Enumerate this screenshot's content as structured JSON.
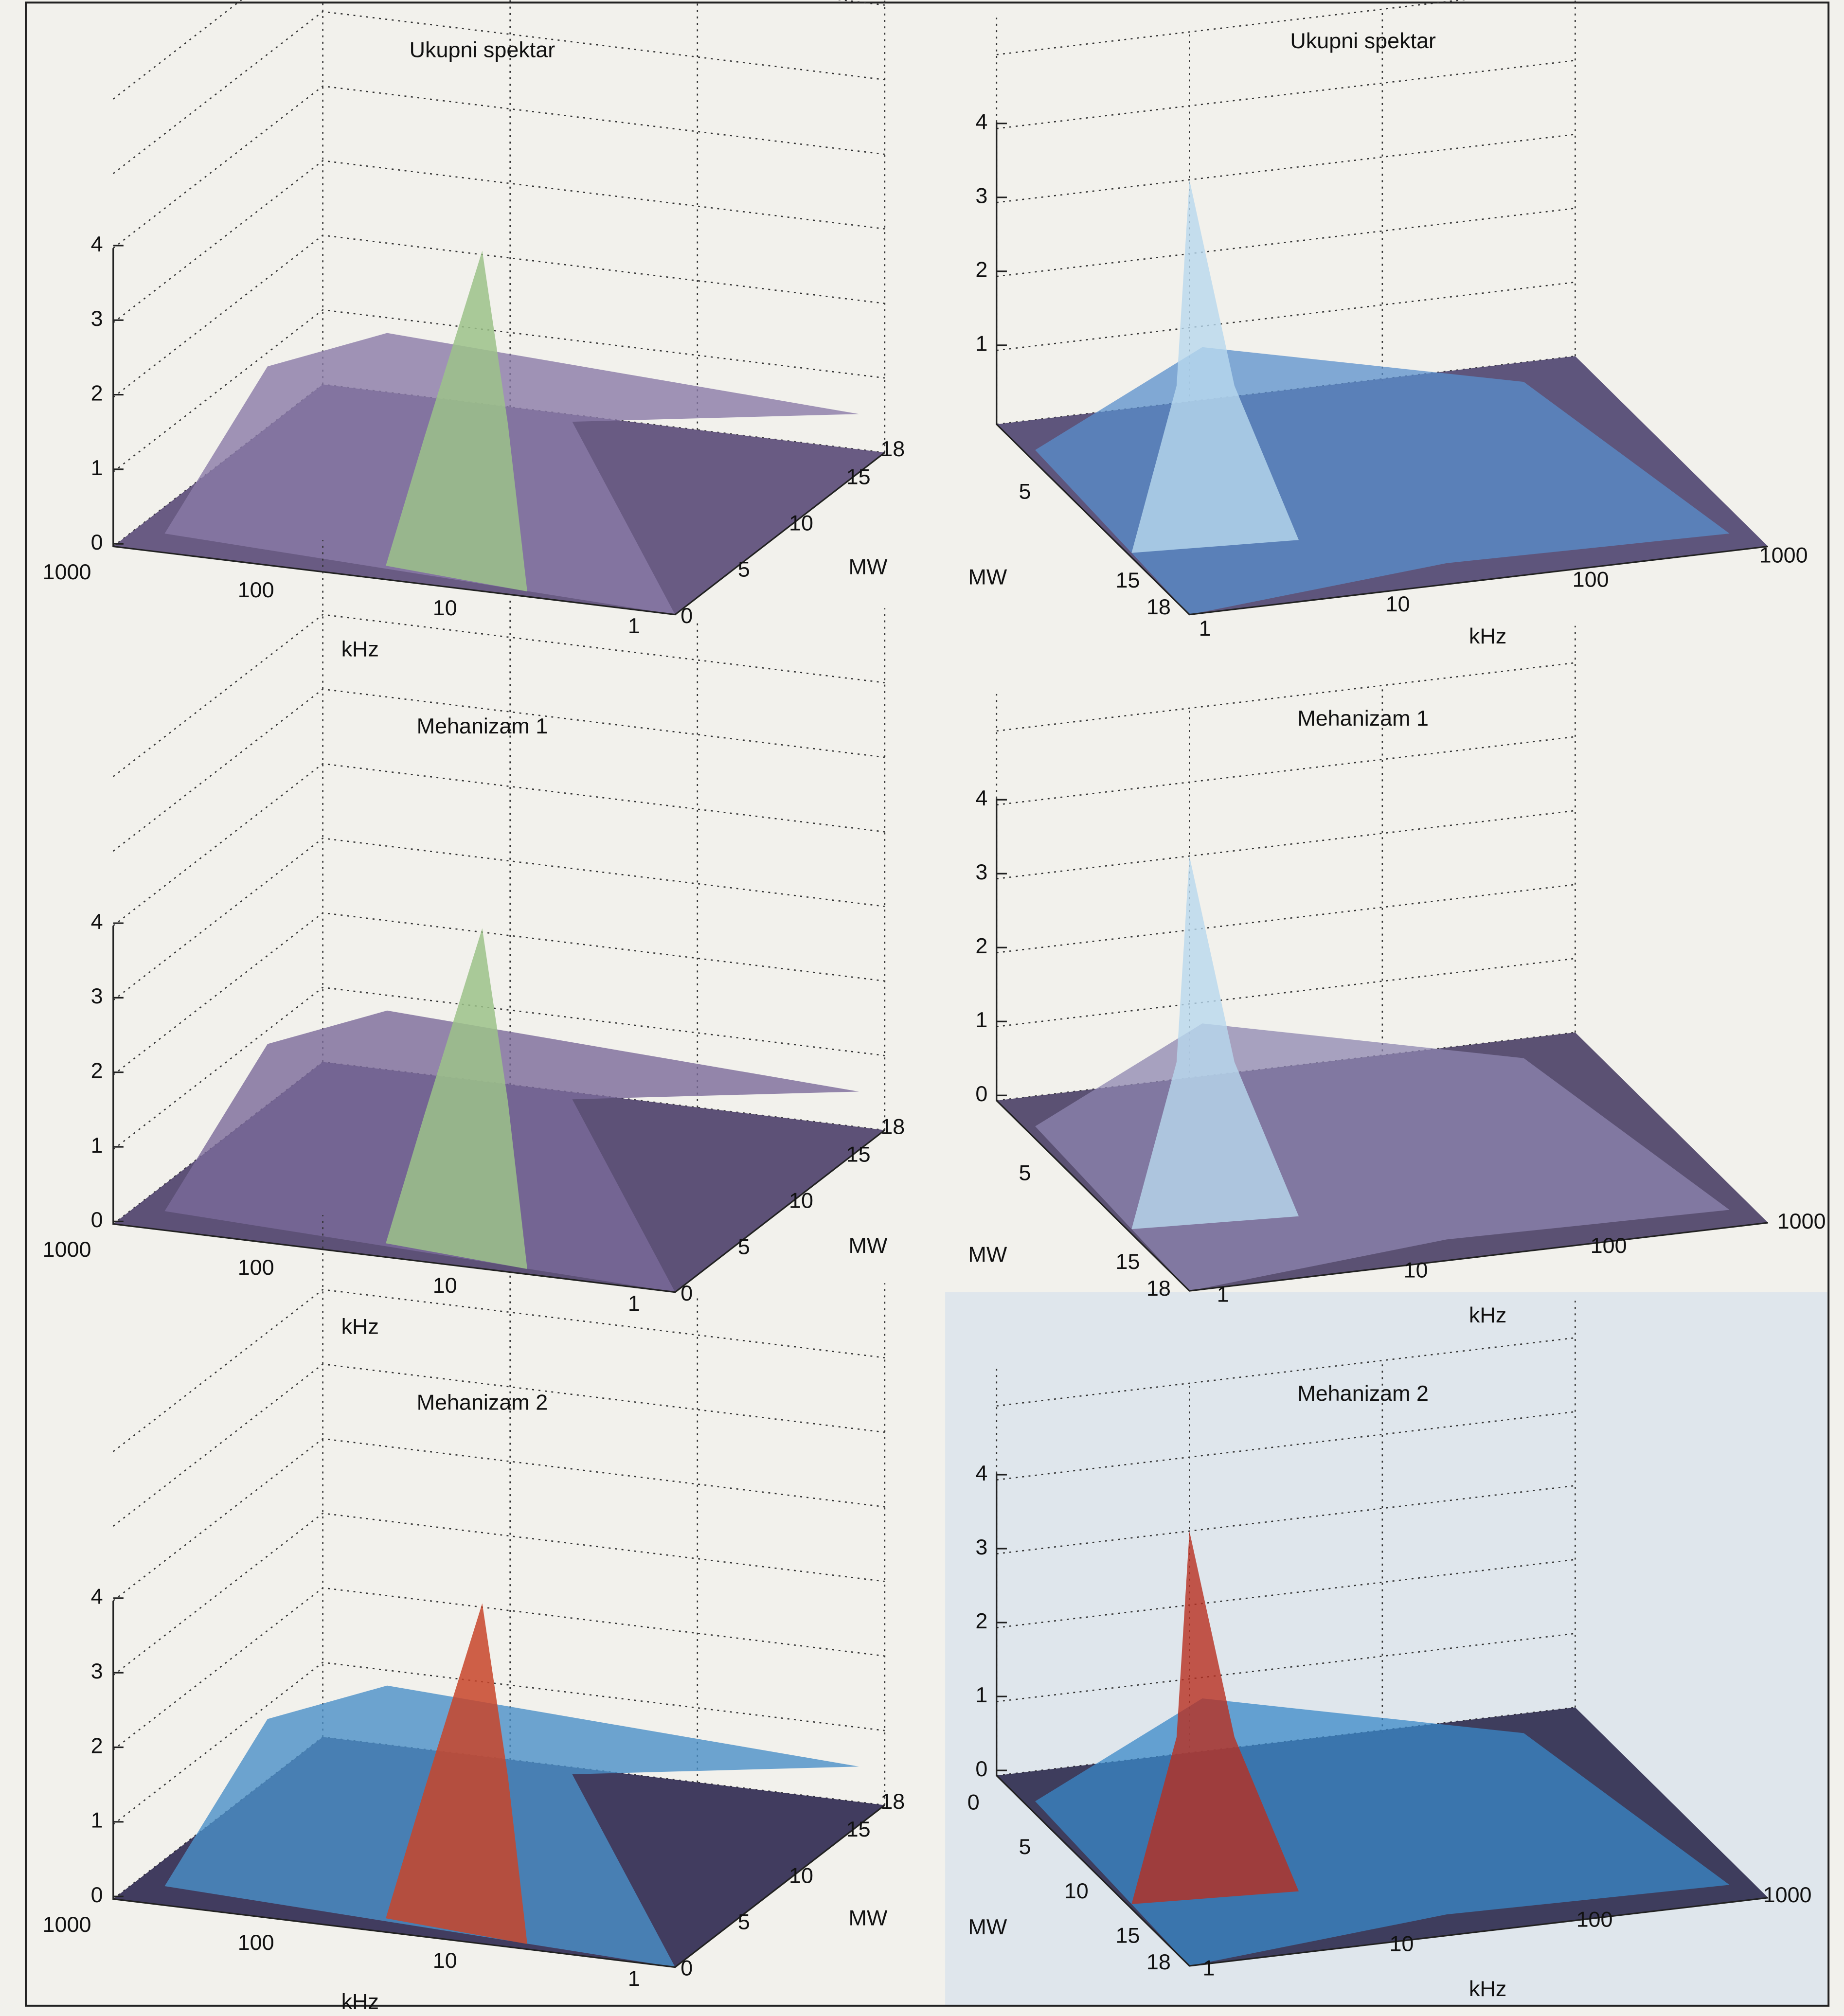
{
  "panels": [
    {
      "title": "Ukupni spektar",
      "z_ticks": [
        0,
        1,
        2,
        3,
        4
      ],
      "khz_ticks": [
        1000,
        100,
        10,
        1
      ],
      "mw_ticks": [
        0,
        5,
        10,
        15,
        18
      ],
      "khz_label": "kHz",
      "mw_label": "MW"
    },
    {
      "title": "Mehanizam 1",
      "z_ticks": [
        0,
        1,
        2,
        3,
        4
      ],
      "khz_ticks": [
        1000,
        100,
        10,
        1
      ],
      "mw_ticks": [
        0,
        5,
        10,
        15,
        18
      ],
      "khz_label": "kHz",
      "mw_label": "MW"
    },
    {
      "title": "Mehanizam 2",
      "z_ticks": [
        0,
        1,
        2,
        3,
        4
      ],
      "khz_ticks": [
        1000,
        100,
        10,
        1
      ],
      "mw_ticks": [
        0,
        5,
        10,
        15,
        18
      ],
      "khz_label": "kHz",
      "mw_label": "MW"
    },
    {
      "title": "Ukupni spektar",
      "z_ticks": [
        1,
        2,
        3,
        4
      ],
      "khz_ticks": [
        1,
        10,
        100,
        1000
      ],
      "mw_ticks": [
        5,
        15,
        18
      ],
      "khz_label": "kHz",
      "mw_label": "MW"
    },
    {
      "title": "Mehanizam 1",
      "z_ticks": [
        0,
        1,
        2,
        3,
        4
      ],
      "khz_ticks": [
        1,
        10,
        100,
        1000
      ],
      "mw_ticks": [
        5,
        15,
        18
      ],
      "khz_label": "kHz",
      "mw_label": "MW"
    },
    {
      "title": "Mehanizam 2",
      "z_ticks": [
        0,
        1,
        2,
        3,
        4
      ],
      "khz_ticks": [
        1,
        10,
        100,
        1000
      ],
      "mw_ticks": [
        0,
        5,
        10,
        15,
        18
      ],
      "khz_label": "kHz",
      "mw_label": "MW"
    }
  ]
}
